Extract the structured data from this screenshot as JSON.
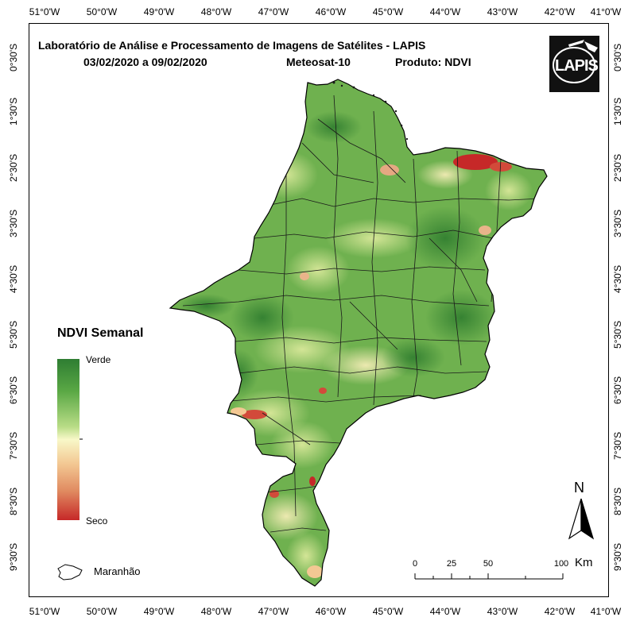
{
  "header": {
    "title": "Laboratório de Análise e Processamento de Imagens de Satélites - LAPIS",
    "date_range": "03/02/2020  a 09/02/2020",
    "satellite": "Meteosat-10",
    "product": "Produto: NDVI"
  },
  "logo": {
    "text": "LAPIS"
  },
  "axes": {
    "longitude_labels": [
      "51°0'W",
      "50°0'W",
      "49°0'W",
      "48°0'W",
      "47°0'W",
      "46°0'W",
      "45°0'W",
      "44°0'W",
      "43°0'W",
      "42°0'W",
      "41°0'W"
    ],
    "latitude_labels": [
      "0°30'S",
      "1°30'S",
      "2°30'S",
      "3°30'S",
      "4°30'S",
      "5°30'S",
      "6°30'S",
      "7°30'S",
      "8°30'S",
      "9°30'S"
    ]
  },
  "legend": {
    "title": "NDVI Semanal",
    "high_label": "Verde",
    "low_label": "Seco",
    "colors": [
      "#2e7d32",
      "#5aa845",
      "#9ccf6a",
      "#f6f6c0",
      "#f0c08a",
      "#e07a5a",
      "#c62828"
    ],
    "state_label": "Maranhão"
  },
  "scale_bar": {
    "ticks": [
      "0",
      "25",
      "50",
      "100"
    ],
    "unit": "Km"
  },
  "north_arrow": {
    "label": "N"
  }
}
